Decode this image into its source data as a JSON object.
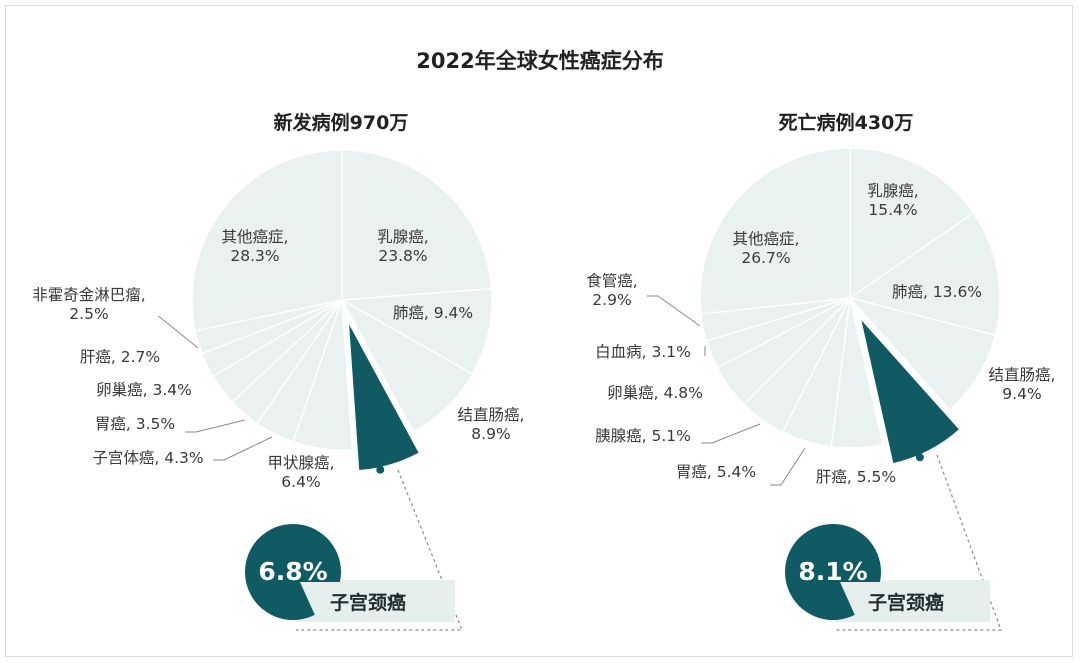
{
  "title": "2022年全球女性癌症分布",
  "colors": {
    "slice_fill": "#e9f2f1",
    "slice_stroke": "#ffffff",
    "highlight": "#0f5a63",
    "badge_band": "#e4efee",
    "leader": "#8a8a8a"
  },
  "chart_data": [
    {
      "type": "pie",
      "title": "新发病例970万",
      "start_category": "乳腺癌",
      "direction": "clockwise",
      "categories": [
        "乳腺癌",
        "肺癌",
        "结直肠癌",
        "子宫颈癌",
        "甲状腺癌",
        "子宫体癌",
        "胃癌",
        "卵巢癌",
        "肝癌",
        "非霍奇金淋巴瘤",
        "其他癌症"
      ],
      "values": [
        23.8,
        9.4,
        8.9,
        6.8,
        6.4,
        4.3,
        3.5,
        3.4,
        2.7,
        2.5,
        28.3
      ],
      "label_lines": [
        [
          "乳腺癌,",
          "23.8%"
        ],
        [
          "肺癌, 9.4%"
        ],
        [
          "结直肠癌,",
          "8.9%"
        ],
        [],
        [
          "甲状腺癌,",
          "6.4%"
        ],
        [
          "子宫体癌, 4.3%"
        ],
        [
          "胃癌, 3.5%"
        ],
        [
          "卵巢癌, 3.4%"
        ],
        [
          "肝癌, 2.7%"
        ],
        [
          "非霍奇金淋巴瘤,",
          "2.5%"
        ],
        [
          "其他癌症,",
          "28.3%"
        ]
      ],
      "highlight": {
        "category": "子宫颈癌",
        "value": "6.8%",
        "label": "子宫颈癌"
      }
    },
    {
      "type": "pie",
      "title": "死亡病例430万",
      "start_category": "乳腺癌",
      "direction": "clockwise",
      "categories": [
        "乳腺癌",
        "肺癌",
        "结直肠癌",
        "子宫颈癌",
        "肝癌",
        "胃癌",
        "胰腺癌",
        "卵巢癌",
        "白血病",
        "食管癌",
        "其他癌症"
      ],
      "values": [
        15.4,
        13.6,
        9.4,
        8.1,
        5.5,
        5.4,
        5.1,
        4.8,
        3.1,
        2.9,
        26.7
      ],
      "label_lines": [
        [
          "乳腺癌,",
          "15.4%"
        ],
        [
          "肺癌, 13.6%"
        ],
        [
          "结直肠癌,",
          "9.4%"
        ],
        [],
        [
          "肝癌, 5.5%"
        ],
        [
          "胃癌, 5.4%"
        ],
        [
          "胰腺癌, 5.1%"
        ],
        [
          "卵巢癌, 4.8%"
        ],
        [
          "白血病, 3.1%"
        ],
        [
          "食管癌,",
          "2.9%"
        ],
        [
          "其他癌症,",
          "26.7%"
        ]
      ],
      "highlight": {
        "category": "子宫颈癌",
        "value": "8.1%",
        "label": "子宫颈癌"
      }
    }
  ]
}
